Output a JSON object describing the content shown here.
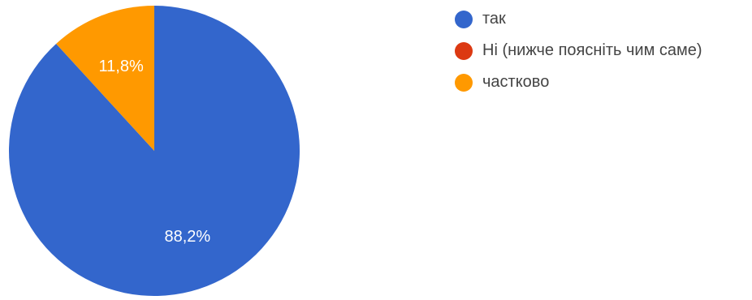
{
  "chart_data": {
    "type": "pie",
    "start_angle_deg": 90,
    "direction": "clockwise",
    "legend_position": "right",
    "slices": [
      {
        "label": "так",
        "value": 88.2,
        "display": "88,2%",
        "color": "#3366cc"
      },
      {
        "label": "Ні (нижче поясніть чим саме)",
        "value": 0,
        "display": "",
        "color": "#dc3912"
      },
      {
        "label": "частково",
        "value": 11.8,
        "display": "11,8%",
        "color": "#ff9900"
      }
    ]
  }
}
